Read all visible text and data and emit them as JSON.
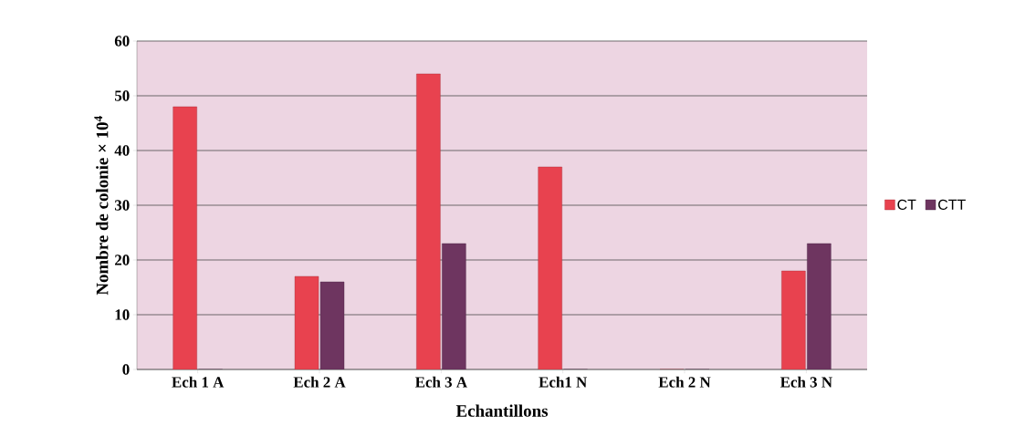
{
  "chart_data": {
    "type": "bar",
    "categories": [
      "Ech 1 A",
      "Ech 2 A",
      "Ech 3 A",
      "Ech1 N",
      "Ech 2 N",
      "Ech 3 N"
    ],
    "series": [
      {
        "name": "CT",
        "color": "#e8424f",
        "values": [
          48,
          17,
          54,
          37,
          0,
          18
        ]
      },
      {
        "name": "CTT",
        "color": "#6e3560",
        "values": [
          0,
          16,
          23,
          0,
          0,
          23
        ]
      }
    ],
    "xlabel": "Echantillons",
    "ylabel": "Nombre de colonie × 10$^{4}$",
    "ylim": [
      0,
      60
    ],
    "yticks": [
      0,
      10,
      20,
      30,
      40,
      50,
      60
    ],
    "grid": "y",
    "legend": "right"
  }
}
